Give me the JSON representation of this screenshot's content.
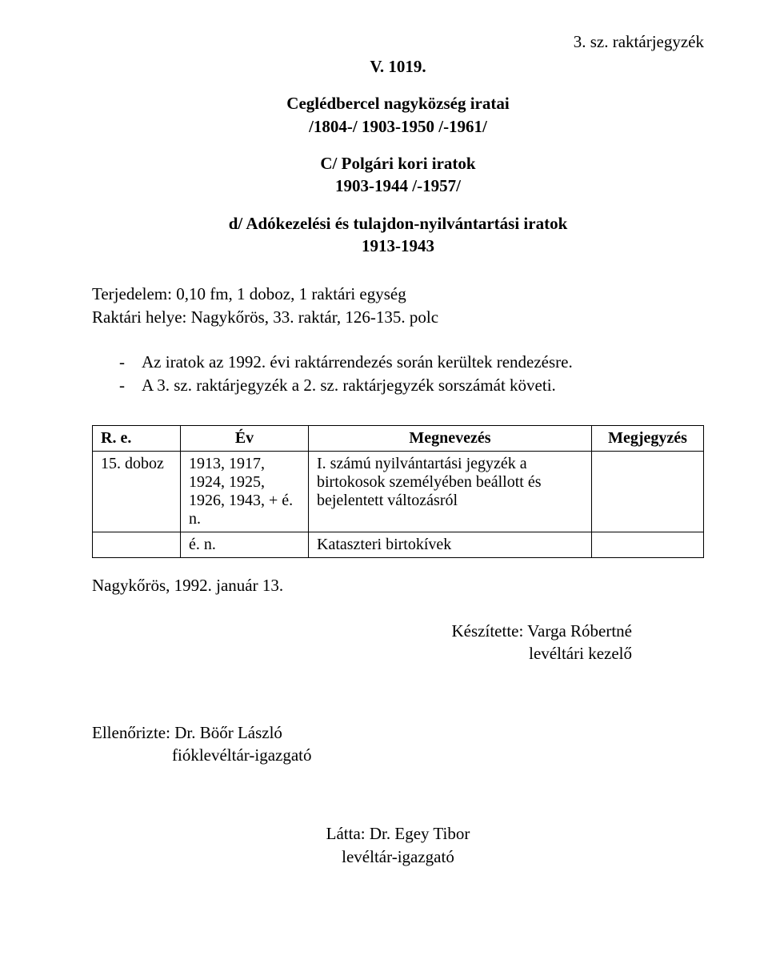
{
  "header": {
    "top_right": "3. sz. raktárjegyzék",
    "title1": "V. 1019.",
    "title2": "Ceglédbercel nagyközség iratai",
    "title3": "/1804-/ 1903-1950 /-1961/",
    "title4": "C/ Polgári kori iratok",
    "title5": "1903-1944 /-1957/",
    "title6": "d/ Adókezelési és tulajdon-nyilvántartási iratok",
    "title7": "1913-1943"
  },
  "meta": {
    "line1": "Terjedelem: 0,10 fm, 1 doboz, 1 raktári egység",
    "line2": "Raktári helye: Nagykőrös, 33. raktár, 126-135. polc"
  },
  "bullets": {
    "b1": "Az iratok az 1992. évi raktárrendezés során kerültek rendezésre.",
    "b2": "A 3. sz. raktárjegyzék a 2. sz. raktárjegyzék sorszámát követi."
  },
  "table": {
    "headers": {
      "re": "R. e.",
      "ev": "Év",
      "megnevezes": "Megnevezés",
      "megjegyzes": "Megjegyzés"
    },
    "rows": [
      {
        "re": "15. doboz",
        "ev": "1913, 1917, 1924, 1925, 1926, 1943, + é. n.",
        "megnevezes": "I. számú nyilvántartási jegyzék a birtokosok személyében beállott és bejelentett változásról",
        "megjegyzes": ""
      },
      {
        "re": "",
        "ev": "é. n.",
        "megnevezes": "Kataszteri birtokívek",
        "megjegyzes": ""
      }
    ]
  },
  "after_table": "Nagykőrös, 1992. január 13.",
  "credits": {
    "right1": "Készítette: Varga Róbertné",
    "right2": "levéltári kezelő",
    "left1": "Ellenőrizte: Dr. Böőr László",
    "left2": "fióklevéltár-igazgató",
    "center1": "Látta: Dr. Egey Tibor",
    "center2": "levéltár-igazgató"
  }
}
